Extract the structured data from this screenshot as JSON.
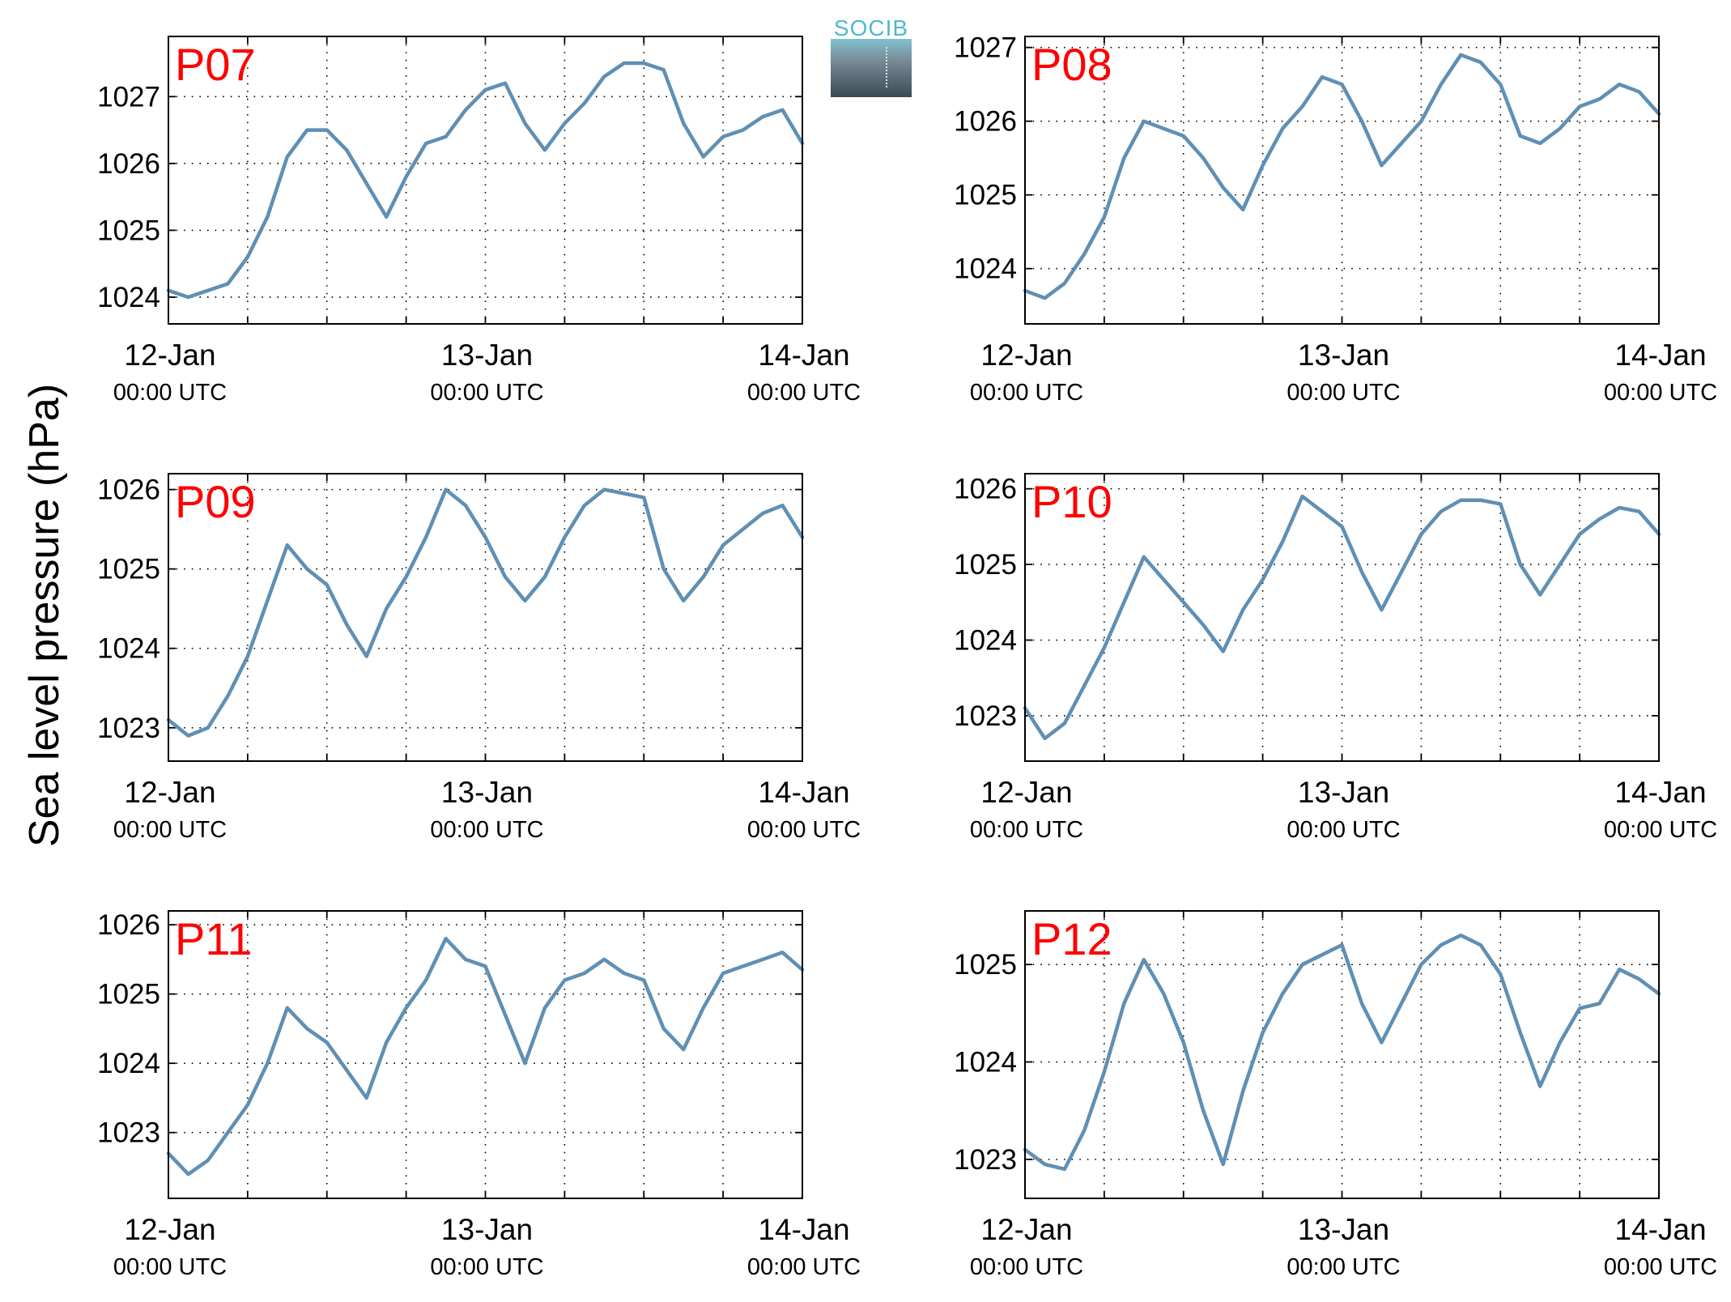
{
  "page_ylabel": "Sea level pressure (hPa)",
  "logo_text": "SOCIB",
  "colors": {
    "line": "#5f8fb4",
    "station_label": "#ff0000",
    "axes": "#000000"
  },
  "x_ticks": [
    {
      "date": "12-Jan",
      "time": "00:00 UTC"
    },
    {
      "date": "13-Jan",
      "time": "00:00 UTC"
    },
    {
      "date": "14-Jan",
      "time": "00:00 UTC"
    }
  ],
  "chart_data": [
    {
      "type": "line",
      "label": "P07",
      "xlim": [
        "12-Jan 00:00",
        "14-Jan 00:00"
      ],
      "ylim": [
        1023.6,
        1027.9
      ],
      "yticks": [
        1024,
        1025,
        1026,
        1027
      ],
      "grid": true,
      "x_hours": [
        0,
        1.5,
        3,
        4.5,
        6,
        7.5,
        9,
        10.5,
        12,
        13.5,
        15,
        16.5,
        18,
        19.5,
        21,
        22.5,
        24,
        25.5,
        27,
        28.5,
        30,
        31.5,
        33,
        34.5,
        36,
        37.5,
        39,
        40.5,
        42,
        43.5,
        45,
        46.5,
        48
      ],
      "values": [
        1024.1,
        1024.0,
        1024.1,
        1024.2,
        1024.6,
        1025.2,
        1026.1,
        1026.5,
        1026.5,
        1026.2,
        1025.7,
        1025.2,
        1025.8,
        1026.3,
        1026.4,
        1026.8,
        1027.1,
        1027.2,
        1026.6,
        1026.2,
        1026.6,
        1026.9,
        1027.3,
        1027.5,
        1027.5,
        1027.4,
        1026.6,
        1026.1,
        1026.4,
        1026.5,
        1026.7,
        1026.8,
        1026.3
      ]
    },
    {
      "type": "line",
      "label": "P08",
      "xlim": [
        "12-Jan 00:00",
        "14-Jan 00:00"
      ],
      "ylim": [
        1023.25,
        1027.15
      ],
      "yticks": [
        1024,
        1025,
        1026,
        1027
      ],
      "grid": true,
      "x_hours": [
        0,
        1.5,
        3,
        4.5,
        6,
        7.5,
        9,
        10.5,
        12,
        13.5,
        15,
        16.5,
        18,
        19.5,
        21,
        22.5,
        24,
        25.5,
        27,
        28.5,
        30,
        31.5,
        33,
        34.5,
        36,
        37.5,
        39,
        40.5,
        42,
        43.5,
        45,
        46.5,
        48
      ],
      "values": [
        1023.7,
        1023.6,
        1023.8,
        1024.2,
        1024.7,
        1025.5,
        1026.0,
        1025.9,
        1025.8,
        1025.5,
        1025.1,
        1024.8,
        1025.4,
        1025.9,
        1026.2,
        1026.6,
        1026.5,
        1026.0,
        1025.4,
        1025.7,
        1026.0,
        1026.5,
        1026.9,
        1026.8,
        1026.5,
        1025.8,
        1025.7,
        1025.9,
        1026.2,
        1026.3,
        1026.5,
        1026.4,
        1026.1
      ]
    },
    {
      "type": "line",
      "label": "P09",
      "xlim": [
        "12-Jan 00:00",
        "14-Jan 00:00"
      ],
      "ylim": [
        1022.58,
        1026.2
      ],
      "yticks": [
        1023,
        1024,
        1025,
        1026
      ],
      "grid": true,
      "x_hours": [
        0,
        1.5,
        3,
        4.5,
        6,
        7.5,
        9,
        10.5,
        12,
        13.5,
        15,
        16.5,
        18,
        19.5,
        21,
        22.5,
        24,
        25.5,
        27,
        28.5,
        30,
        31.5,
        33,
        34.5,
        36,
        37.5,
        39,
        40.5,
        42,
        43.5,
        45,
        46.5,
        48
      ],
      "values": [
        1023.1,
        1022.9,
        1023.0,
        1023.4,
        1023.9,
        1024.6,
        1025.3,
        1025.0,
        1024.8,
        1024.3,
        1023.9,
        1024.5,
        1024.9,
        1025.4,
        1026.0,
        1025.8,
        1025.4,
        1024.9,
        1024.6,
        1024.9,
        1025.4,
        1025.8,
        1026.0,
        1025.95,
        1025.9,
        1025.0,
        1024.6,
        1024.9,
        1025.3,
        1025.5,
        1025.7,
        1025.8,
        1025.4
      ]
    },
    {
      "type": "line",
      "label": "P10",
      "xlim": [
        "12-Jan 00:00",
        "14-Jan 00:00"
      ],
      "ylim": [
        1022.4,
        1026.2
      ],
      "yticks": [
        1023,
        1024,
        1025,
        1026
      ],
      "grid": true,
      "x_hours": [
        0,
        1.5,
        3,
        4.5,
        6,
        7.5,
        9,
        10.5,
        12,
        13.5,
        15,
        16.5,
        18,
        19.5,
        21,
        22.5,
        24,
        25.5,
        27,
        28.5,
        30,
        31.5,
        33,
        34.5,
        36,
        37.5,
        39,
        40.5,
        42,
        43.5,
        45,
        46.5,
        48
      ],
      "values": [
        1023.1,
        1022.7,
        1022.9,
        1023.4,
        1023.9,
        1024.5,
        1025.1,
        1024.8,
        1024.5,
        1024.2,
        1023.85,
        1024.4,
        1024.8,
        1025.3,
        1025.9,
        1025.7,
        1025.5,
        1024.9,
        1024.4,
        1024.9,
        1025.4,
        1025.7,
        1025.85,
        1025.85,
        1025.8,
        1025.0,
        1024.6,
        1025.0,
        1025.4,
        1025.6,
        1025.75,
        1025.7,
        1025.4
      ]
    },
    {
      "type": "line",
      "label": "P11",
      "xlim": [
        "12-Jan 00:00",
        "14-Jan 00:00"
      ],
      "ylim": [
        1022.05,
        1026.2
      ],
      "yticks": [
        1023,
        1024,
        1025,
        1026
      ],
      "grid": true,
      "x_hours": [
        0,
        1.5,
        3,
        4.5,
        6,
        7.5,
        9,
        10.5,
        12,
        13.5,
        15,
        16.5,
        18,
        19.5,
        21,
        22.5,
        24,
        25.5,
        27,
        28.5,
        30,
        31.5,
        33,
        34.5,
        36,
        37.5,
        39,
        40.5,
        42,
        43.5,
        45,
        46.5,
        48
      ],
      "values": [
        1022.7,
        1022.4,
        1022.6,
        1023.0,
        1023.4,
        1024.0,
        1024.8,
        1024.5,
        1024.3,
        1023.9,
        1023.5,
        1024.3,
        1024.8,
        1025.2,
        1025.8,
        1025.5,
        1025.4,
        1024.7,
        1024.0,
        1024.8,
        1025.2,
        1025.3,
        1025.5,
        1025.3,
        1025.2,
        1024.5,
        1024.2,
        1024.8,
        1025.3,
        1025.4,
        1025.5,
        1025.6,
        1025.35
      ]
    },
    {
      "type": "line",
      "label": "P12",
      "xlim": [
        "12-Jan 00:00",
        "14-Jan 00:00"
      ],
      "ylim": [
        1022.6,
        1025.55
      ],
      "yticks": [
        1023,
        1024,
        1025
      ],
      "grid": true,
      "x_hours": [
        0,
        1.5,
        3,
        4.5,
        6,
        7.5,
        9,
        10.5,
        12,
        13.5,
        15,
        16.5,
        18,
        19.5,
        21,
        22.5,
        24,
        25.5,
        27,
        28.5,
        30,
        31.5,
        33,
        34.5,
        36,
        37.5,
        39,
        40.5,
        42,
        43.5,
        45,
        46.5,
        48
      ],
      "values": [
        1023.1,
        1022.95,
        1022.9,
        1023.3,
        1023.9,
        1024.6,
        1025.05,
        1024.7,
        1024.2,
        1023.5,
        1022.95,
        1023.7,
        1024.3,
        1024.7,
        1025.0,
        1025.1,
        1025.2,
        1024.6,
        1024.2,
        1024.6,
        1025.0,
        1025.2,
        1025.3,
        1025.2,
        1024.9,
        1024.3,
        1023.75,
        1024.2,
        1024.55,
        1024.6,
        1024.95,
        1024.85,
        1024.7
      ]
    }
  ]
}
